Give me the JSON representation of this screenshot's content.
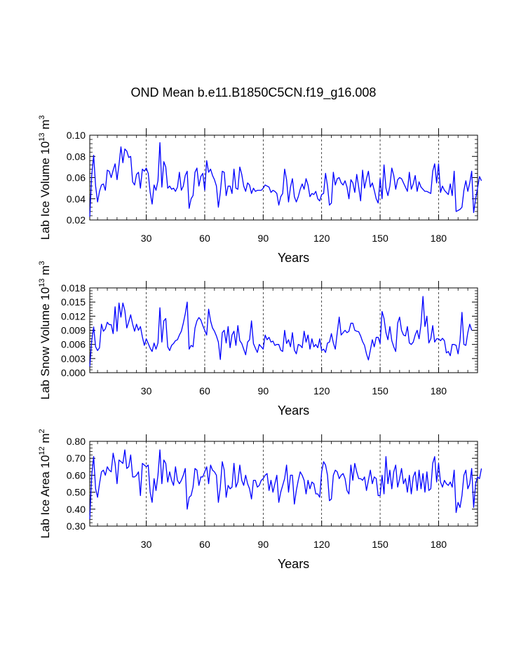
{
  "page": {
    "title": "OND Mean b.e11.B1850C5CN.f19_g16.008"
  },
  "chart_data": [
    {
      "type": "line",
      "title": "OND Mean b.e11.B1850C5CN.f19_g16.008",
      "xlabel": "Years",
      "ylabel_base": "Lab Ice Volume 10",
      "ylabel_exp": "13",
      "ylabel_unit": "m",
      "ylabel_unit_exp": "3",
      "xlim": [
        1,
        200
      ],
      "ylim": [
        0.02,
        0.1
      ],
      "xticks": [
        30,
        60,
        90,
        120,
        150,
        180
      ],
      "xtick_labels": [
        "30",
        "60",
        "90",
        "120",
        "150",
        "180"
      ],
      "yticks": [
        0.02,
        0.04,
        0.06,
        0.08,
        0.1
      ],
      "ytick_labels": [
        "0.02",
        "0.04",
        "0.06",
        "0.08",
        "0.10"
      ],
      "grid": "vertical dashed at x ticks",
      "line_color": "#0000ff",
      "series": [
        {
          "name": "Lab Ice Volume",
          "values": [
            0.023,
            0.062,
            0.081,
            0.052,
            0.037,
            0.047,
            0.053,
            0.054,
            0.048,
            0.067,
            0.066,
            0.06,
            0.067,
            0.073,
            0.058,
            0.072,
            0.089,
            0.074,
            0.087,
            0.085,
            0.079,
            0.08,
            0.056,
            0.053,
            0.063,
            0.065,
            0.05,
            0.068,
            0.066,
            0.069,
            0.064,
            0.046,
            0.035,
            0.053,
            0.048,
            0.057,
            0.093,
            0.051,
            0.075,
            0.07,
            0.05,
            0.052,
            0.049,
            0.05,
            0.047,
            0.051,
            0.065,
            0.048,
            0.052,
            0.062,
            0.066,
            0.031,
            0.04,
            0.043,
            0.065,
            0.069,
            0.052,
            0.061,
            0.064,
            0.048,
            0.076,
            0.065,
            0.068,
            0.062,
            0.058,
            0.052,
            0.032,
            0.046,
            0.066,
            0.065,
            0.043,
            0.052,
            0.052,
            0.045,
            0.068,
            0.05,
            0.049,
            0.07,
            0.063,
            0.052,
            0.047,
            0.055,
            0.053,
            0.045,
            0.05,
            0.047,
            0.048,
            0.048,
            0.048,
            0.05,
            0.053,
            0.052,
            0.051,
            0.046,
            0.048,
            0.047,
            0.045,
            0.034,
            0.042,
            0.045,
            0.068,
            0.058,
            0.037,
            0.051,
            0.059,
            0.042,
            0.037,
            0.042,
            0.049,
            0.054,
            0.049,
            0.059,
            0.053,
            0.042,
            0.045,
            0.044,
            0.047,
            0.04,
            0.038,
            0.044,
            0.045,
            0.064,
            0.052,
            0.034,
            0.036,
            0.065,
            0.053,
            0.059,
            0.06,
            0.055,
            0.053,
            0.057,
            0.051,
            0.04,
            0.058,
            0.055,
            0.046,
            0.063,
            0.051,
            0.038,
            0.067,
            0.05,
            0.059,
            0.066,
            0.051,
            0.055,
            0.048,
            0.04,
            0.036,
            0.059,
            0.04,
            0.072,
            0.05,
            0.043,
            0.052,
            0.069,
            0.062,
            0.049,
            0.058,
            0.06,
            0.059,
            0.055,
            0.051,
            0.047,
            0.065,
            0.049,
            0.054,
            0.062,
            0.047,
            0.056,
            0.051,
            0.049,
            0.047,
            0.047,
            0.046,
            0.045,
            0.066,
            0.073,
            0.055,
            0.073,
            0.046,
            0.052,
            0.048,
            0.046,
            0.044,
            0.054,
            0.043,
            0.066,
            0.028,
            0.029,
            0.03,
            0.032,
            0.048,
            0.057,
            0.047,
            0.055,
            0.066,
            0.027,
            0.04,
            0.05,
            0.061,
            0.057
          ]
        }
      ]
    },
    {
      "type": "line",
      "xlabel": "Years",
      "ylabel_base": "Lab Snow Volume 10",
      "ylabel_exp": "13",
      "ylabel_unit": "m",
      "ylabel_unit_exp": "3",
      "xlim": [
        1,
        200
      ],
      "ylim": [
        0.0,
        0.018
      ],
      "xticks": [
        30,
        60,
        90,
        120,
        150,
        180
      ],
      "xtick_labels": [
        "30",
        "60",
        "90",
        "120",
        "150",
        "180"
      ],
      "yticks": [
        0.0,
        0.003,
        0.006,
        0.009,
        0.012,
        0.015,
        0.018
      ],
      "ytick_labels": [
        "0.000",
        "0.003",
        "0.006",
        "0.009",
        "0.012",
        "0.015",
        "0.018"
      ],
      "grid": "vertical dashed at x ticks",
      "line_color": "#0000ff",
      "series": [
        {
          "name": "Lab Snow Volume",
          "values": [
            0.0013,
            0.0068,
            0.0097,
            0.0055,
            0.0047,
            0.0053,
            0.0103,
            0.0088,
            0.0093,
            0.0107,
            0.0102,
            0.0102,
            0.0083,
            0.014,
            0.0088,
            0.0148,
            0.0118,
            0.0148,
            0.0132,
            0.0095,
            0.0108,
            0.0123,
            0.0103,
            0.0088,
            0.0103,
            0.009,
            0.0098,
            0.0076,
            0.0058,
            0.0072,
            0.0062,
            0.0052,
            0.0045,
            0.0063,
            0.005,
            0.0063,
            0.0138,
            0.0065,
            0.011,
            0.0115,
            0.0055,
            0.0047,
            0.0058,
            0.0062,
            0.0068,
            0.007,
            0.008,
            0.0088,
            0.0105,
            0.0125,
            0.015,
            0.005,
            0.0058,
            0.0055,
            0.0095,
            0.011,
            0.0117,
            0.0112,
            0.01,
            0.009,
            0.008,
            0.0135,
            0.011,
            0.0095,
            0.0088,
            0.0078,
            0.0065,
            0.0028,
            0.0085,
            0.009,
            0.0063,
            0.0098,
            0.0053,
            0.008,
            0.0088,
            0.0058,
            0.01,
            0.0068,
            0.0062,
            0.005,
            0.0038,
            0.0065,
            0.007,
            0.011,
            0.0062,
            0.0052,
            0.0043,
            0.006,
            0.0055,
            0.005,
            0.008,
            0.007,
            0.0075,
            0.0065,
            0.0067,
            0.0058,
            0.006,
            0.006,
            0.0048,
            0.0045,
            0.009,
            0.0062,
            0.007,
            0.0055,
            0.0085,
            0.0048,
            0.004,
            0.006,
            0.0058,
            0.0053,
            0.0088,
            0.0065,
            0.008,
            0.005,
            0.0072,
            0.0055,
            0.006,
            0.0053,
            0.0072,
            0.0047,
            0.005,
            0.0043,
            0.0063,
            0.0065,
            0.0083,
            0.0063,
            0.005,
            0.0085,
            0.0118,
            0.008,
            0.0085,
            0.009,
            0.0085,
            0.0088,
            0.0105,
            0.0105,
            0.009,
            0.0088,
            0.0087,
            0.0078,
            0.0066,
            0.0058,
            0.004,
            0.0027,
            0.0048,
            0.007,
            0.0055,
            0.0075,
            0.0075,
            0.0062,
            0.013,
            0.0115,
            0.0085,
            0.007,
            0.0098,
            0.0068,
            0.0055,
            0.0045,
            0.0105,
            0.0118,
            0.009,
            0.008,
            0.0078,
            0.0098,
            0.0063,
            0.006,
            0.0065,
            0.008,
            0.009,
            0.0072,
            0.0103,
            0.0162,
            0.0098,
            0.012,
            0.0063,
            0.0072,
            0.01,
            0.0065,
            0.0072,
            0.0072,
            0.0068,
            0.0073,
            0.0068,
            0.0042,
            0.0045,
            0.0036,
            0.006,
            0.006,
            0.0058,
            0.004,
            0.0068,
            0.0128,
            0.006,
            0.0058,
            0.0085,
            0.0103,
            0.009
          ]
        }
      ]
    },
    {
      "type": "line",
      "xlabel": "Years",
      "ylabel_base": "Lab Ice Area 10",
      "ylabel_exp": "12",
      "ylabel_unit": "m",
      "ylabel_unit_exp": "2",
      "xlim": [
        1,
        200
      ],
      "ylim": [
        0.3,
        0.8
      ],
      "xticks": [
        30,
        60,
        90,
        120,
        150,
        180
      ],
      "xtick_labels": [
        "30",
        "60",
        "90",
        "120",
        "150",
        "180"
      ],
      "yticks": [
        0.3,
        0.4,
        0.5,
        0.6,
        0.7,
        0.8
      ],
      "ytick_labels": [
        "0.30",
        "0.40",
        "0.50",
        "0.60",
        "0.70",
        "0.80"
      ],
      "grid": "vertical dashed at x ticks",
      "line_color": "#0000ff",
      "series": [
        {
          "name": "Lab Ice Area",
          "values": [
            0.34,
            0.6,
            0.71,
            0.52,
            0.47,
            0.55,
            0.62,
            0.63,
            0.6,
            0.65,
            0.63,
            0.62,
            0.73,
            0.67,
            0.55,
            0.69,
            0.68,
            0.67,
            0.75,
            0.64,
            0.65,
            0.72,
            0.59,
            0.59,
            0.6,
            0.62,
            0.48,
            0.67,
            0.66,
            0.65,
            0.66,
            0.5,
            0.44,
            0.58,
            0.51,
            0.6,
            0.75,
            0.55,
            0.69,
            0.67,
            0.56,
            0.62,
            0.57,
            0.54,
            0.65,
            0.57,
            0.55,
            0.57,
            0.6,
            0.64,
            0.4,
            0.47,
            0.48,
            0.53,
            0.64,
            0.63,
            0.54,
            0.59,
            0.59,
            0.62,
            0.65,
            0.55,
            0.66,
            0.63,
            0.62,
            0.6,
            0.44,
            0.53,
            0.68,
            0.63,
            0.47,
            0.54,
            0.52,
            0.53,
            0.67,
            0.53,
            0.56,
            0.66,
            0.57,
            0.54,
            0.6,
            0.55,
            0.52,
            0.46,
            0.57,
            0.57,
            0.53,
            0.54,
            0.57,
            0.58,
            0.6,
            0.61,
            0.51,
            0.57,
            0.5,
            0.55,
            0.6,
            0.44,
            0.5,
            0.54,
            0.58,
            0.66,
            0.5,
            0.6,
            0.6,
            0.43,
            0.51,
            0.57,
            0.62,
            0.6,
            0.57,
            0.49,
            0.57,
            0.52,
            0.56,
            0.55,
            0.49,
            0.49,
            0.47,
            0.62,
            0.68,
            0.66,
            0.6,
            0.45,
            0.46,
            0.6,
            0.63,
            0.62,
            0.58,
            0.6,
            0.61,
            0.58,
            0.51,
            0.49,
            0.66,
            0.57,
            0.67,
            0.62,
            0.58,
            0.58,
            0.57,
            0.59,
            0.51,
            0.57,
            0.63,
            0.55,
            0.59,
            0.58,
            0.48,
            0.48,
            0.6,
            0.49,
            0.71,
            0.55,
            0.63,
            0.52,
            0.62,
            0.66,
            0.53,
            0.58,
            0.64,
            0.55,
            0.58,
            0.5,
            0.6,
            0.49,
            0.59,
            0.62,
            0.51,
            0.63,
            0.52,
            0.61,
            0.5,
            0.62,
            0.51,
            0.52,
            0.67,
            0.71,
            0.56,
            0.67,
            0.56,
            0.53,
            0.57,
            0.55,
            0.54,
            0.56,
            0.53,
            0.63,
            0.38,
            0.44,
            0.41,
            0.48,
            0.6,
            0.63,
            0.52,
            0.55,
            0.64,
            0.41,
            0.55,
            0.59,
            0.58,
            0.64
          ]
        }
      ]
    }
  ]
}
